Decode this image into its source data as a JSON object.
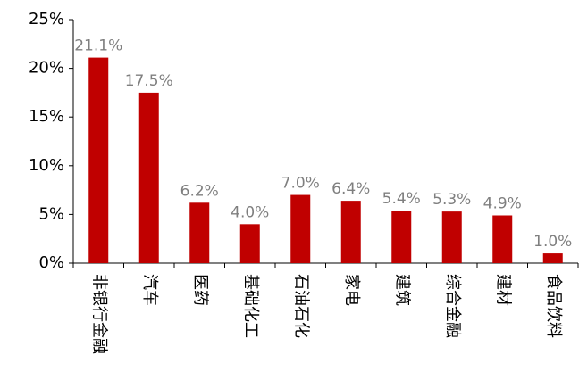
{
  "chart_data": {
    "type": "bar",
    "categories": [
      "非银行金融",
      "汽车",
      "医药",
      "基础化工",
      "石油石化",
      "家电",
      "建筑",
      "综合金融",
      "建材",
      "食品饮料"
    ],
    "values": [
      21.1,
      17.5,
      6.2,
      4.0,
      7.0,
      6.4,
      5.4,
      5.3,
      4.9,
      1.0
    ],
    "value_labels": [
      "21.1%",
      "17.5%",
      "6.2%",
      "4.0%",
      "7.0%",
      "6.4%",
      "5.4%",
      "5.3%",
      "4.9%",
      "1.0%"
    ],
    "color": "#c00000",
    "ylim": [
      0,
      25
    ],
    "yticks": [
      {
        "value": 0,
        "label": "0%"
      },
      {
        "value": 5,
        "label": "5%"
      },
      {
        "value": 10,
        "label": "10%"
      },
      {
        "value": 15,
        "label": "15%"
      },
      {
        "value": 20,
        "label": "20%"
      },
      {
        "value": 25,
        "label": "25%"
      }
    ]
  }
}
